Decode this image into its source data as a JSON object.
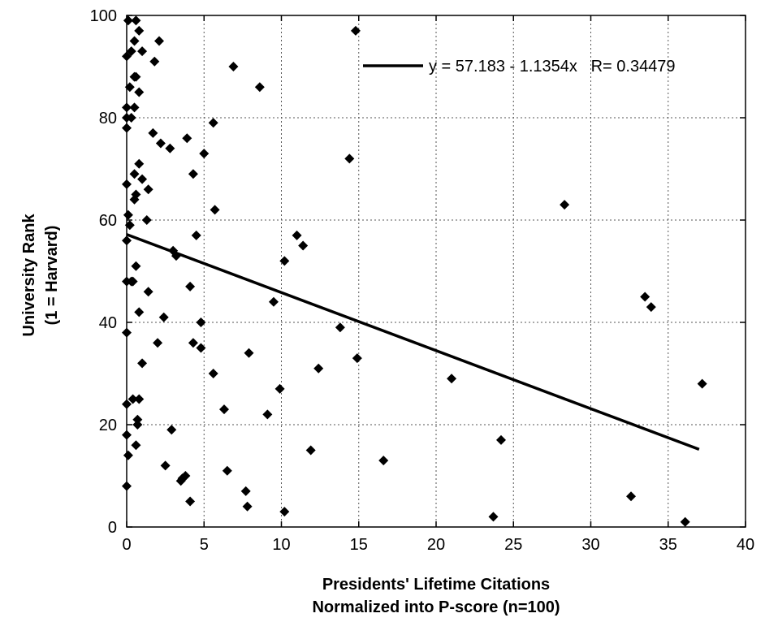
{
  "chart_data": {
    "type": "scatter",
    "xlabel": [
      "Presidents' Lifetime Citations",
      "Normalized into P-score (n=100)"
    ],
    "ylabel": [
      "University Rank",
      "(1 = Harvard)"
    ],
    "xlim": [
      0,
      40
    ],
    "ylim": [
      0,
      100
    ],
    "xticks": [
      0,
      5,
      10,
      15,
      20,
      25,
      30,
      35,
      40
    ],
    "yticks": [
      0,
      20,
      40,
      60,
      80,
      100
    ],
    "xtick_labels": [
      "0",
      "5",
      "10",
      "15",
      "20",
      "25",
      "30",
      "35",
      "40"
    ],
    "ytick_labels": [
      "0",
      "20",
      "40",
      "60",
      "80",
      "100"
    ],
    "grid": true,
    "legend_position": "top-right",
    "fit": {
      "label": "y = 57.183 - 1.1354x   R= 0.34479",
      "intercept": 57.183,
      "slope": -1.1354,
      "x_range": [
        0,
        37
      ],
      "color": "#000000"
    },
    "points": [
      [
        0.1,
        99
      ],
      [
        0.6,
        99
      ],
      [
        0.8,
        97
      ],
      [
        14.8,
        97
      ],
      [
        0.5,
        95
      ],
      [
        2.1,
        95
      ],
      [
        0.3,
        93
      ],
      [
        1.0,
        93
      ],
      [
        0.0,
        92
      ],
      [
        1.8,
        91
      ],
      [
        6.9,
        90
      ],
      [
        0.5,
        88
      ],
      [
        0.6,
        88
      ],
      [
        0.2,
        86
      ],
      [
        8.6,
        86
      ],
      [
        0.8,
        85
      ],
      [
        0.0,
        82
      ],
      [
        0.5,
        82
      ],
      [
        0.0,
        80
      ],
      [
        0.3,
        80
      ],
      [
        0.0,
        78
      ],
      [
        5.6,
        79
      ],
      [
        1.7,
        77
      ],
      [
        3.9,
        76
      ],
      [
        2.2,
        75
      ],
      [
        2.8,
        74
      ],
      [
        5.0,
        73
      ],
      [
        14.4,
        72
      ],
      [
        0.8,
        71
      ],
      [
        0.5,
        69
      ],
      [
        4.3,
        69
      ],
      [
        1.0,
        68
      ],
      [
        0.0,
        67
      ],
      [
        1.4,
        66
      ],
      [
        0.6,
        65
      ],
      [
        0.5,
        64
      ],
      [
        28.3,
        63
      ],
      [
        5.7,
        62
      ],
      [
        0.1,
        61
      ],
      [
        1.3,
        60
      ],
      [
        0.2,
        59
      ],
      [
        4.5,
        57
      ],
      [
        11.0,
        57
      ],
      [
        0.0,
        56
      ],
      [
        11.4,
        55
      ],
      [
        3.0,
        54
      ],
      [
        3.2,
        53
      ],
      [
        10.2,
        52
      ],
      [
        0.6,
        51
      ],
      [
        0.0,
        48
      ],
      [
        0.3,
        48
      ],
      [
        0.4,
        48
      ],
      [
        4.1,
        47
      ],
      [
        1.4,
        46
      ],
      [
        33.5,
        45
      ],
      [
        9.5,
        44
      ],
      [
        33.9,
        43
      ],
      [
        0.8,
        42
      ],
      [
        2.4,
        41
      ],
      [
        4.8,
        40
      ],
      [
        13.8,
        39
      ],
      [
        0.0,
        38
      ],
      [
        2.0,
        36
      ],
      [
        4.3,
        36
      ],
      [
        4.8,
        35
      ],
      [
        7.9,
        34
      ],
      [
        14.9,
        33
      ],
      [
        1.0,
        32
      ],
      [
        12.4,
        31
      ],
      [
        5.6,
        30
      ],
      [
        21.0,
        29
      ],
      [
        37.2,
        28
      ],
      [
        9.9,
        27
      ],
      [
        0.4,
        25
      ],
      [
        0.8,
        25
      ],
      [
        0.0,
        24
      ],
      [
        6.3,
        23
      ],
      [
        9.1,
        22
      ],
      [
        0.7,
        21
      ],
      [
        0.7,
        20
      ],
      [
        2.9,
        19
      ],
      [
        0.0,
        18
      ],
      [
        24.2,
        17
      ],
      [
        0.6,
        16
      ],
      [
        11.9,
        15
      ],
      [
        0.1,
        14
      ],
      [
        16.6,
        13
      ],
      [
        2.5,
        12
      ],
      [
        6.5,
        11
      ],
      [
        3.8,
        10
      ],
      [
        3.5,
        9
      ],
      [
        0.0,
        8
      ],
      [
        7.7,
        7
      ],
      [
        32.6,
        6
      ],
      [
        4.1,
        5
      ],
      [
        7.8,
        4
      ],
      [
        10.2,
        3
      ],
      [
        23.7,
        2
      ],
      [
        36.1,
        1
      ],
      [
        3.6,
        9.5
      ]
    ]
  }
}
